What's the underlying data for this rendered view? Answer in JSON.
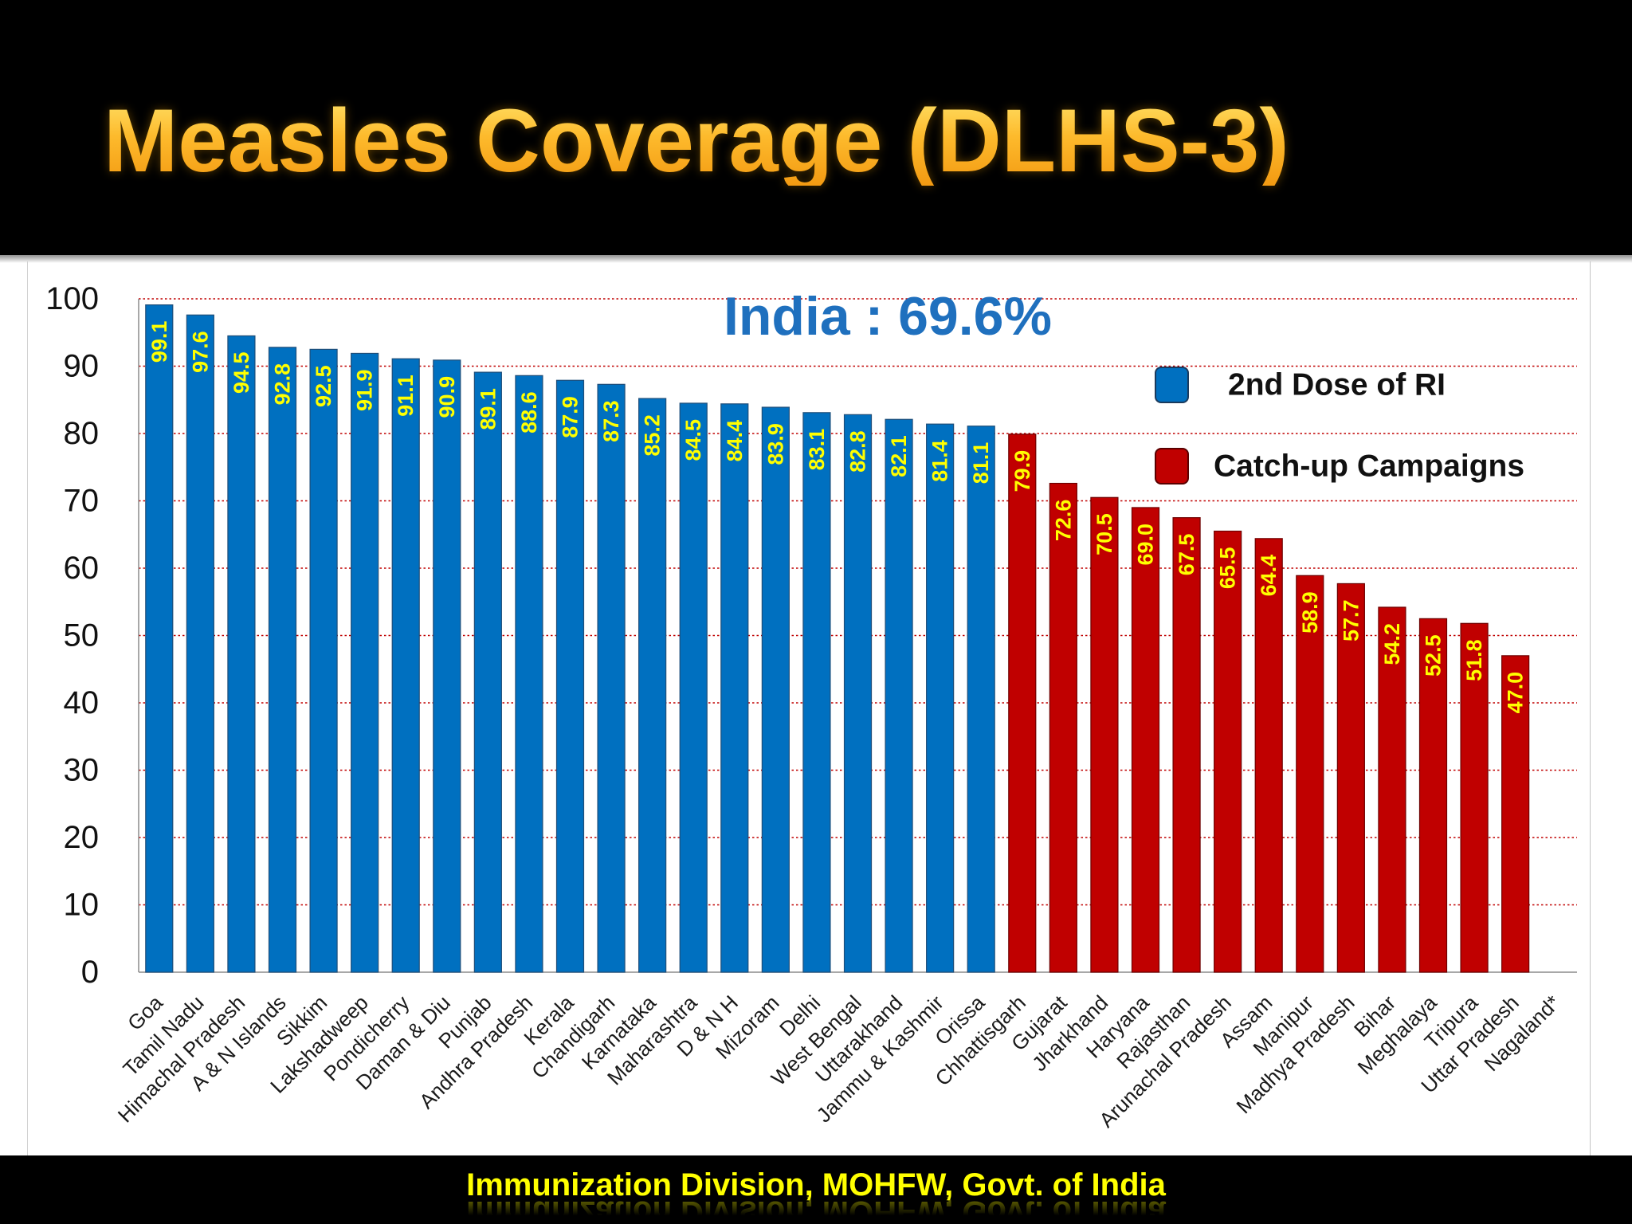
{
  "slide": {
    "footer": "Immunization Division, MOHFW, Govt. of India",
    "colors": {
      "header_bg": "#000000",
      "title": "#F7A81B",
      "footer_text": "#FFFF00",
      "panel_bg": "#FFFFFF"
    }
  },
  "chart_data": {
    "type": "bar",
    "title": "Measles Coverage (DLHS-3)",
    "annotation": "India : 69.6%",
    "annotation_color": "#1F70BE",
    "xlabel": "",
    "ylabel": "",
    "ylim": [
      0,
      100
    ],
    "yticks": [
      0,
      10,
      20,
      30,
      40,
      50,
      60,
      70,
      80,
      90,
      100
    ],
    "grid": true,
    "gridline_color": "#C00000",
    "legend_position": "right",
    "data_label_color": "#FFFF00",
    "categories": [
      "Goa",
      "Tamil Nadu",
      "Himachal Pradesh",
      "A & N Islands",
      "Sikkim",
      "Lakshadweep",
      "Pondicherry",
      "Daman & Diu",
      "Punjab",
      "Andhra Pradesh",
      "Kerala",
      "Chandigarh",
      "Karnataka",
      "Maharashtra",
      "D & N H",
      "Mizoram",
      "Delhi",
      "West Bengal",
      "Uttarakhand",
      "Jammu & Kashmir",
      "Orissa",
      "Chhattisgarh",
      "Gujarat",
      "Jharkhand",
      "Haryana",
      "Rajasthan",
      "Arunachal Pradesh",
      "Assam",
      "Manipur",
      "Madhya Pradesh",
      "Bihar",
      "Meghalaya",
      "Tripura",
      "Uttar Pradesh",
      "Nagaland*"
    ],
    "series": [
      {
        "name": "2nd Dose of RI",
        "color": "#0070C0",
        "values": [
          99.1,
          97.6,
          94.5,
          92.8,
          92.5,
          91.9,
          91.1,
          90.9,
          89.1,
          88.6,
          87.9,
          87.3,
          85.2,
          84.5,
          84.4,
          83.9,
          83.1,
          82.8,
          82.1,
          81.4,
          81.1,
          null,
          null,
          null,
          null,
          null,
          null,
          null,
          null,
          null,
          null,
          null,
          null,
          null,
          null
        ]
      },
      {
        "name": "Catch-up Campaigns",
        "color": "#C00000",
        "values": [
          null,
          null,
          null,
          null,
          null,
          null,
          null,
          null,
          null,
          null,
          null,
          null,
          null,
          null,
          null,
          null,
          null,
          null,
          null,
          null,
          null,
          79.9,
          72.6,
          70.5,
          69.0,
          67.5,
          65.5,
          64.4,
          58.9,
          57.7,
          54.2,
          52.5,
          51.8,
          47.0,
          null
        ]
      }
    ]
  }
}
